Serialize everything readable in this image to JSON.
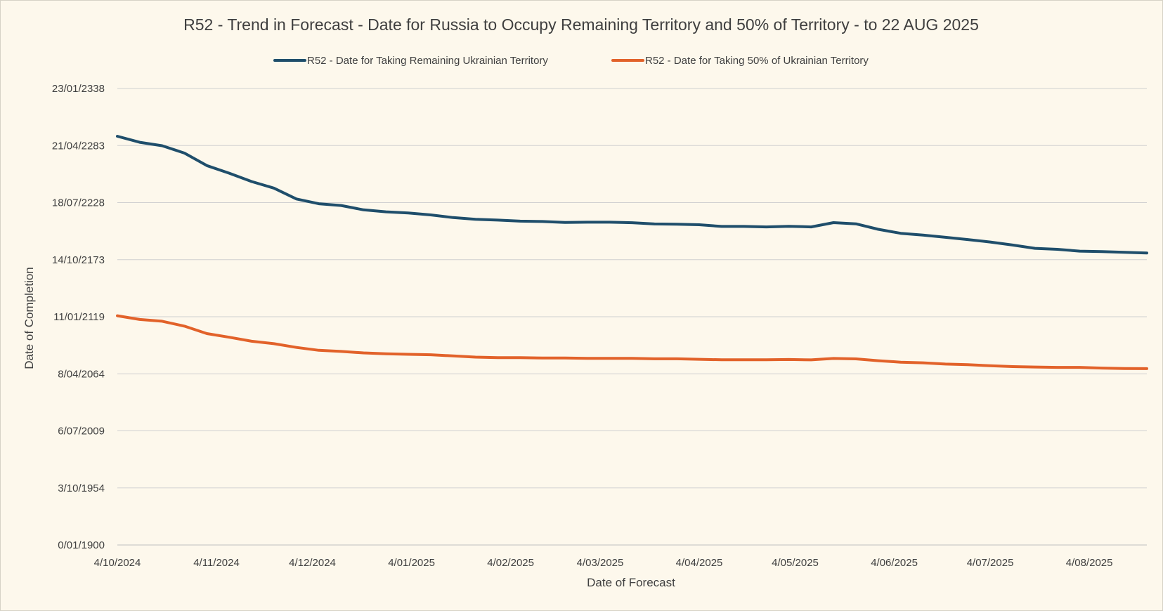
{
  "chart_data": {
    "type": "line",
    "title": "R52 - Trend in Forecast - Date for Russia to Occupy Remaining Territory and 50% of Territory - to 22 AUG 2025",
    "xlabel": "Date of Forecast",
    "ylabel": "Date of Completion",
    "x_ticks": [
      "4/10/2024",
      "4/11/2024",
      "4/12/2024",
      "4/01/2025",
      "4/02/2025",
      "4/03/2025",
      "4/04/2025",
      "4/05/2025",
      "4/06/2025",
      "4/07/2025",
      "4/08/2025"
    ],
    "y_ticks": [
      "0/01/1900",
      "3/10/1954",
      "6/07/2009",
      "8/04/2064",
      "11/01/2119",
      "14/10/2173",
      "18/07/2228",
      "21/04/2283",
      "23/01/2338"
    ],
    "xlim": [
      "2024-10-04",
      "2025-08-22"
    ],
    "ylim": [
      "1900-01-00",
      "2338-01-23"
    ],
    "grid": "horizontal",
    "legend_position": "top",
    "colors": {
      "series_1": "#1f4e6b",
      "series_2": "#e2622a",
      "grid": "#d0d0d0",
      "background": "#fdf8ec"
    },
    "x": [
      "2024-10-04",
      "2024-10-11",
      "2024-10-18",
      "2024-10-25",
      "2024-11-01",
      "2024-11-08",
      "2024-11-15",
      "2024-11-22",
      "2024-11-29",
      "2024-12-06",
      "2024-12-13",
      "2024-12-20",
      "2024-12-27",
      "2025-01-03",
      "2025-01-10",
      "2025-01-17",
      "2025-01-24",
      "2025-01-31",
      "2025-02-07",
      "2025-02-14",
      "2025-02-21",
      "2025-02-28",
      "2025-03-07",
      "2025-03-14",
      "2025-03-21",
      "2025-03-28",
      "2025-04-04",
      "2025-04-11",
      "2025-04-18",
      "2025-04-25",
      "2025-05-02",
      "2025-05-09",
      "2025-05-16",
      "2025-05-23",
      "2025-05-30",
      "2025-06-06",
      "2025-06-13",
      "2025-06-20",
      "2025-06-27",
      "2025-07-04",
      "2025-07-11",
      "2025-07-18",
      "2025-07-25",
      "2025-08-01",
      "2025-08-08",
      "2025-08-15",
      "2025-08-22"
    ],
    "series": [
      {
        "name": "R52 - Date for Taking Remaining Ukrainian Territory",
        "values": [
          "2292-04",
          "2286-06",
          "2283-03",
          "2276-02",
          "2264-02",
          "2256-10",
          "2248-10",
          "2242-06",
          "2232-02",
          "2227-07",
          "2225-10",
          "2221-08",
          "2219-10",
          "2218-09",
          "2216-10",
          "2214-03",
          "2212-07",
          "2211-10",
          "2210-10",
          "2210-06",
          "2209-07",
          "2209-10",
          "2209-10",
          "2209-04",
          "2208-02",
          "2207-11",
          "2207-05",
          "2205-09",
          "2205-09",
          "2205-04",
          "2205-11",
          "2205-04",
          "2209-05",
          "2208-03",
          "2202-12",
          "2199-02",
          "2197-06",
          "2195-04",
          "2193-02",
          "2190-10",
          "2187-11",
          "2184-09",
          "2183-10",
          "2182-01",
          "2181-08",
          "2180-11",
          "2180-04"
        ]
      },
      {
        "name": "R52 - Date for Taking  50% of Ukrainian Territory",
        "values": [
          "2120-01",
          "2116-06",
          "2114-10",
          "2110-01",
          "2102-11",
          "2099-05",
          "2095-07",
          "2093-03",
          "2089-08",
          "2086-11",
          "2085-10",
          "2084-05",
          "2083-06",
          "2083-01",
          "2082-08",
          "2081-06",
          "2080-04",
          "2079-10",
          "2079-10",
          "2079-06",
          "2079-06",
          "2079-02",
          "2079-02",
          "2079-02",
          "2078-09",
          "2078-09",
          "2078-03",
          "2077-10",
          "2077-10",
          "2077-10",
          "2078-01",
          "2077-09",
          "2079-01",
          "2078-08",
          "2076-11",
          "2075-06",
          "2074-11",
          "2073-08",
          "2073-01",
          "2072-01",
          "2071-03",
          "2070-10",
          "2070-06",
          "2070-06",
          "2069-10",
          "2069-05",
          "2069-04"
        ]
      }
    ]
  }
}
